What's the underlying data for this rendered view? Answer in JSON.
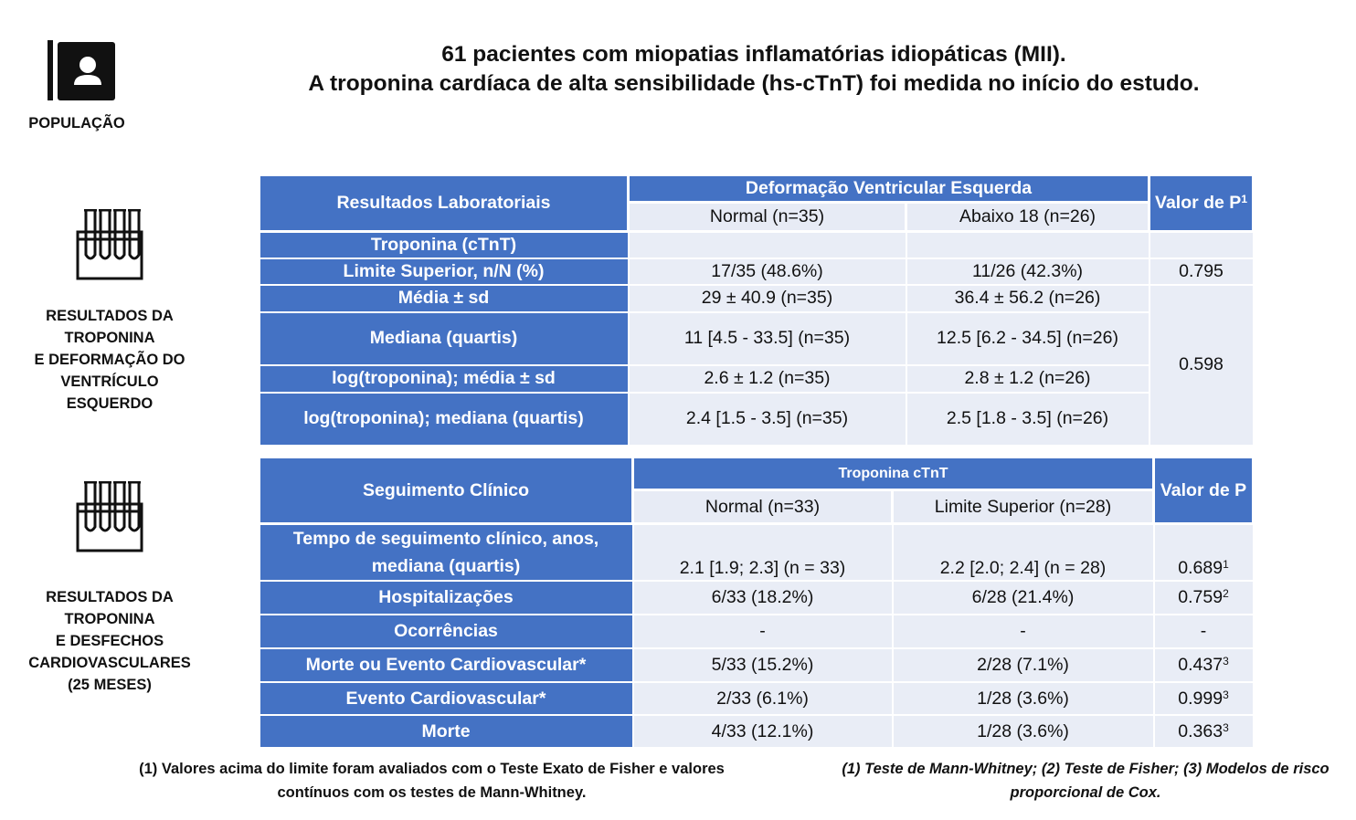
{
  "header": {
    "population_label": "POPULAÇÃO",
    "title_line1": "61 pacientes com miopatias inflamatórias idiopáticas (MII).",
    "title_line2": "A troponina cardíaca de alta sensibilidade (hs-cTnT) foi medida no início do estudo."
  },
  "section1": {
    "icon": "test-tubes-icon",
    "label_lines": [
      "RESULTADOS DA",
      "TROPONINA",
      "E DEFORMAÇÃO DO",
      "VENTRÍCULO",
      "ESQUERDO"
    ],
    "table": {
      "col_header": "Resultados Laboratoriais",
      "group_header": "Deformação Ventricular Esquerda",
      "sub_headers": [
        "Normal (n=35)",
        "Abaixo 18 (n=26)"
      ],
      "p_header": "Valor de P",
      "p_header_sup": "1",
      "rows": [
        {
          "label": "Troponina (cTnT)",
          "normal": "",
          "abaixo": "",
          "p": ""
        },
        {
          "label": "Limite Superior, n/N (%)",
          "normal": "17/35 (48.6%)",
          "abaixo": "11/26 (42.3%)",
          "p": "0.795"
        },
        {
          "label": "Média ± sd",
          "normal": "29 ± 40.9 (n=35)",
          "abaixo": "36.4 ± 56.2 (n=26)",
          "p": "0.598"
        },
        {
          "label": "Mediana (quartis)",
          "normal": "11 [4.5 - 33.5] (n=35)",
          "abaixo": "12.5 [6.2 - 34.5] (n=26)"
        },
        {
          "label": "log(troponina); média ± sd",
          "normal": "2.6 ± 1.2 (n=35)",
          "abaixo": "2.8 ± 1.2 (n=26)"
        },
        {
          "label": "log(troponina); mediana (quartis)",
          "normal": "2.4 [1.5 - 3.5] (n=35)",
          "abaixo": "2.5 [1.8 - 3.5] (n=26)"
        }
      ]
    }
  },
  "section2": {
    "icon": "test-tubes-icon",
    "label_lines": [
      "RESULTADOS DA",
      "TROPONINA",
      "E DESFECHOS",
      "CARDIOVASCULARES",
      "(25 MESES)"
    ],
    "table": {
      "col_header": "Seguimento Clínico",
      "group_header": "Troponina cTnT",
      "sub_headers": [
        "Normal (n=33)",
        "Limite Superior (n=28)"
      ],
      "p_header": "Valor de P",
      "rows": [
        {
          "label_lines": [
            "Tempo de seguimento clínico, anos,",
            "mediana (quartis)"
          ],
          "normal": "2.1 [1.9; 2.3] (n = 33)",
          "limite": "2.2 [2.0; 2.4] (n = 28)",
          "p": "0.689",
          "p_sup": "1"
        },
        {
          "label": "Hospitalizações",
          "normal": "6/33 (18.2%)",
          "limite": "6/28 (21.4%)",
          "p": "0.759",
          "p_sup": "2"
        },
        {
          "label": "Ocorrências",
          "normal": "-",
          "limite": "-",
          "p": "-",
          "p_sup": ""
        },
        {
          "label": "Morte ou Evento Cardiovascular*",
          "normal": "5/33 (15.2%)",
          "limite": "2/28 (7.1%)",
          "p": "0.437",
          "p_sup": "3"
        },
        {
          "label": "Evento Cardiovascular*",
          "normal": "2/33 (6.1%)",
          "limite": "1/28 (3.6%)",
          "p": "0.999",
          "p_sup": "3"
        },
        {
          "label": "Morte",
          "normal": "4/33 (12.1%)",
          "limite": "1/28 (3.6%)",
          "p": "0.363",
          "p_sup": "3"
        }
      ]
    }
  },
  "footnotes": {
    "left_line1": "(1) Valores acima do limite foram avaliados com o Teste Exato de Fisher e valores",
    "left_line2": "contínuos com os testes de Mann-Whitney.",
    "right_line1": "(1) Teste de Mann-Whitney; (2)  Teste de Fisher; (3) Modelos de risco",
    "right_line2": "proporcional de Cox."
  },
  "colors": {
    "header_blue": "#4472c4",
    "cell_bg": "#e9edf6",
    "text": "#111111"
  }
}
